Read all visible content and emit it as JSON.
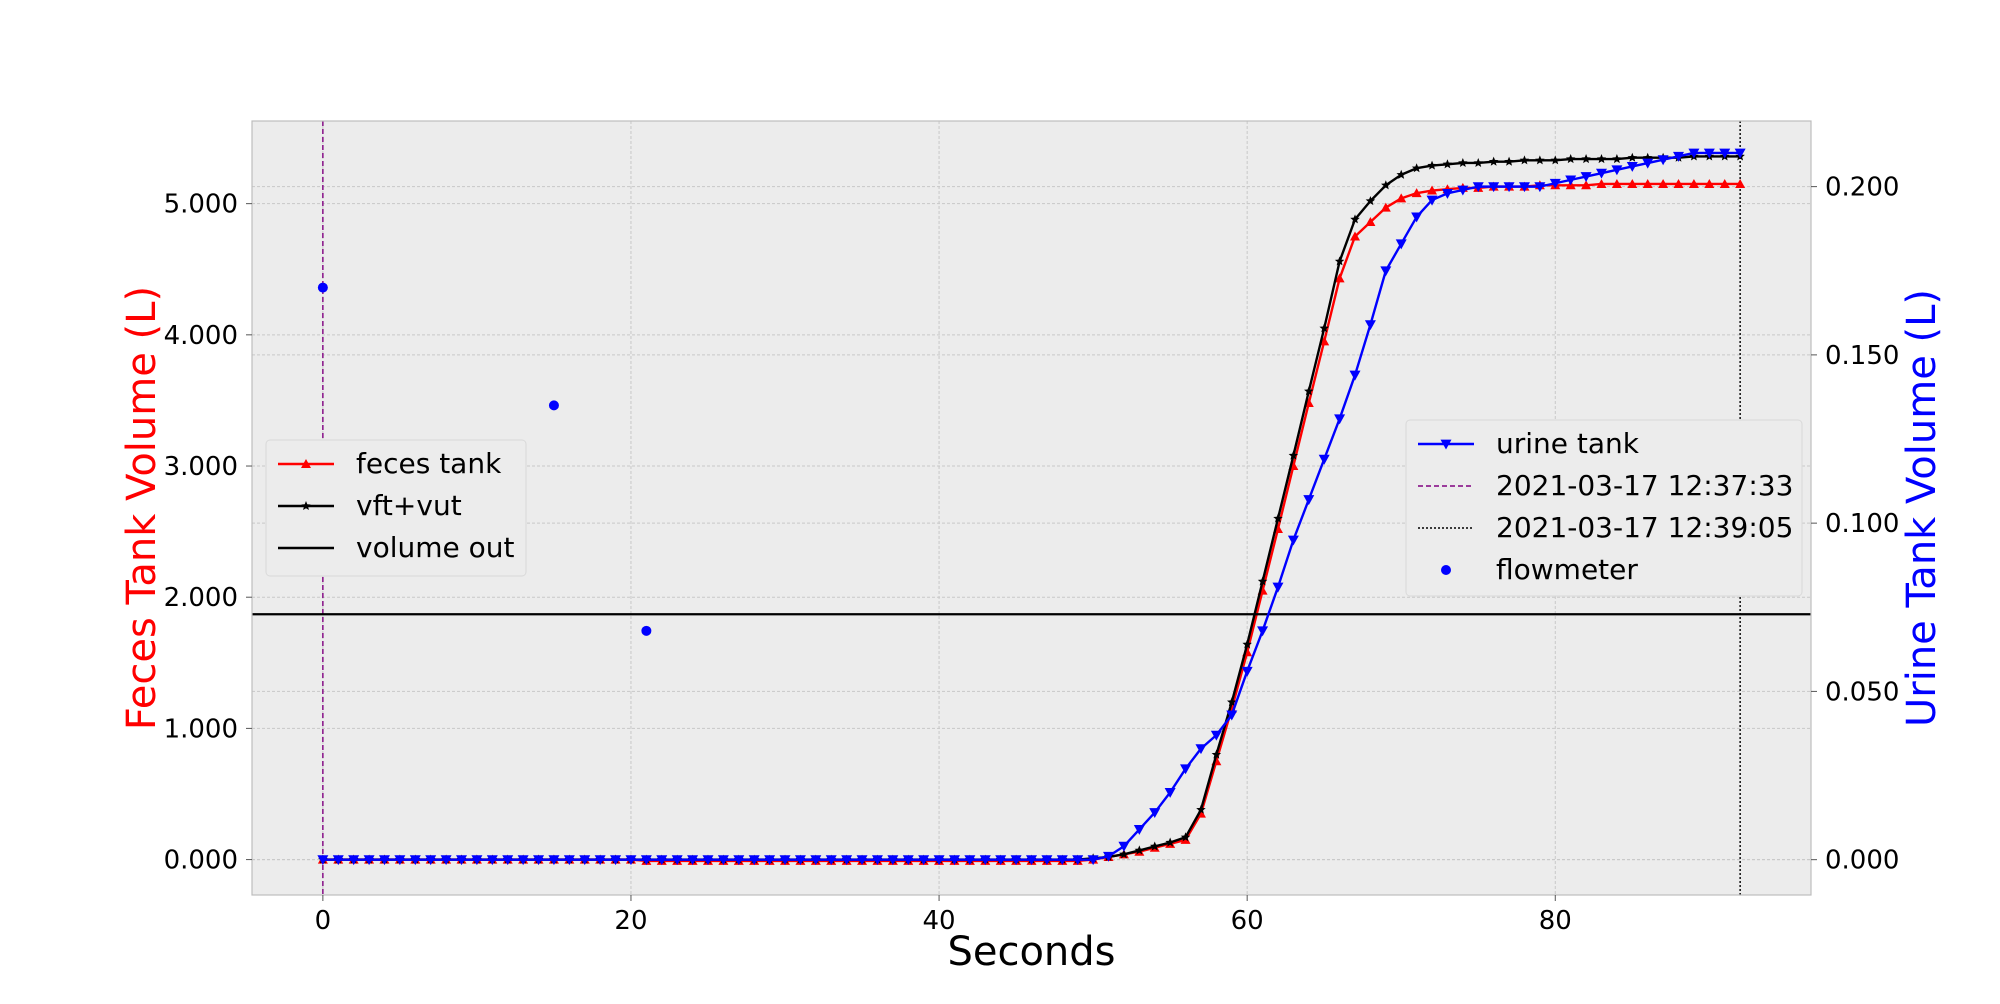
{
  "chart_data": {
    "type": "line",
    "title": "",
    "xlabel": "Seconds",
    "ylabel_left": "Feces Tank Volume (L)",
    "ylabel_right": "Urine Tank Volume (L)",
    "xlim": [
      -4.6,
      96.6
    ],
    "ylim_left": [
      -0.27,
      5.63
    ],
    "ylim_right": [
      -0.0105,
      0.2195
    ],
    "x_ticks": [
      0,
      20,
      40,
      60,
      80
    ],
    "y_ticks_left": [
      0.0,
      1.0,
      2.0,
      3.0,
      4.0,
      5.0
    ],
    "y_tick_labels_left": [
      "0.000",
      "1.000",
      "2.000",
      "3.000",
      "4.000",
      "5.000"
    ],
    "y_ticks_right": [
      0.0,
      0.05,
      0.1,
      0.15,
      0.2
    ],
    "y_tick_labels_right": [
      "0.000",
      "0.050",
      "0.100",
      "0.150",
      "0.200"
    ],
    "grid": true,
    "colors": {
      "feces_axis": "#ff0000",
      "urine_axis": "#0000ff",
      "plot_background": "#ececec",
      "grid": "#c8c8c8"
    },
    "series": [
      {
        "name": "feces tank",
        "axis": "left",
        "color": "#ff0000",
        "marker": "triangle-up",
        "x": [
          0,
          1,
          2,
          3,
          4,
          5,
          6,
          7,
          8,
          9,
          10,
          11,
          12,
          13,
          14,
          15,
          16,
          17,
          18,
          19,
          20,
          21,
          22,
          23,
          24,
          25,
          26,
          27,
          28,
          29,
          30,
          31,
          32,
          33,
          34,
          35,
          36,
          37,
          38,
          39,
          40,
          41,
          42,
          43,
          44,
          45,
          46,
          47,
          48,
          49,
          50,
          51,
          52,
          53,
          54,
          55,
          56,
          57,
          58,
          59,
          60,
          61,
          62,
          63,
          64,
          65,
          66,
          67,
          68,
          69,
          70,
          71,
          72,
          73,
          74,
          75,
          76,
          77,
          78,
          79,
          80,
          81,
          82,
          83,
          84,
          85,
          86,
          87,
          88,
          89,
          90,
          91,
          92
        ],
        "y": [
          0,
          0,
          0,
          0,
          0,
          0,
          0,
          0,
          0,
          0,
          0,
          0,
          0,
          0,
          0,
          0,
          0,
          0,
          0,
          0,
          0,
          -0.01,
          -0.01,
          -0.01,
          -0.01,
          -0.01,
          -0.01,
          -0.01,
          -0.01,
          -0.01,
          -0.01,
          -0.01,
          -0.01,
          -0.01,
          -0.01,
          -0.01,
          -0.01,
          -0.01,
          -0.01,
          -0.01,
          -0.01,
          -0.01,
          -0.01,
          -0.01,
          -0.01,
          -0.01,
          -0.01,
          -0.01,
          -0.01,
          -0.01,
          0,
          0.02,
          0.04,
          0.06,
          0.09,
          0.12,
          0.15,
          0.35,
          0.75,
          1.15,
          1.58,
          2.05,
          2.52,
          3.0,
          3.48,
          3.95,
          4.43,
          4.75,
          4.86,
          4.97,
          5.04,
          5.08,
          5.1,
          5.11,
          5.12,
          5.12,
          5.13,
          5.13,
          5.13,
          5.14,
          5.14,
          5.14,
          5.14,
          5.15,
          5.15,
          5.15,
          5.15,
          5.15,
          5.15,
          5.15,
          5.15,
          5.15,
          5.15
        ]
      },
      {
        "name": "vft+vut",
        "axis": "left",
        "color": "#000000",
        "marker": "star",
        "x": [
          0,
          1,
          2,
          3,
          4,
          5,
          6,
          7,
          8,
          9,
          10,
          11,
          12,
          13,
          14,
          15,
          16,
          17,
          18,
          19,
          20,
          21,
          22,
          23,
          24,
          25,
          26,
          27,
          28,
          29,
          30,
          31,
          32,
          33,
          34,
          35,
          36,
          37,
          38,
          39,
          40,
          41,
          42,
          43,
          44,
          45,
          46,
          47,
          48,
          49,
          50,
          51,
          52,
          53,
          54,
          55,
          56,
          57,
          58,
          59,
          60,
          61,
          62,
          63,
          64,
          65,
          66,
          67,
          68,
          69,
          70,
          71,
          72,
          73,
          74,
          75,
          76,
          77,
          78,
          79,
          80,
          81,
          82,
          83,
          84,
          85,
          86,
          87,
          88,
          89,
          90,
          91,
          92
        ],
        "y": [
          0,
          0,
          0,
          0,
          0,
          0,
          0,
          0,
          0,
          0,
          0,
          0,
          0,
          0,
          0,
          0,
          0,
          0,
          0,
          0,
          0,
          0,
          0,
          0,
          0,
          0,
          0,
          0,
          0,
          0,
          0,
          0,
          0,
          0,
          0,
          0,
          0,
          0,
          0,
          0,
          0,
          0,
          0,
          0,
          0,
          0,
          0,
          0,
          0,
          0,
          0.01,
          0.02,
          0.04,
          0.07,
          0.1,
          0.13,
          0.17,
          0.38,
          0.8,
          1.2,
          1.64,
          2.12,
          2.6,
          3.08,
          3.57,
          4.05,
          4.56,
          4.88,
          5.02,
          5.14,
          5.22,
          5.27,
          5.29,
          5.3,
          5.31,
          5.31,
          5.32,
          5.32,
          5.33,
          5.33,
          5.33,
          5.34,
          5.34,
          5.34,
          5.34,
          5.35,
          5.35,
          5.35,
          5.35,
          5.36,
          5.36,
          5.36,
          5.36
        ]
      },
      {
        "name": "volume out",
        "axis": "left",
        "color": "#000000",
        "marker": "none",
        "x": [
          -4.6,
          96.6
        ],
        "y": [
          1.87,
          1.87
        ]
      },
      {
        "name": "urine tank",
        "axis": "right",
        "color": "#0000ff",
        "marker": "triangle-down",
        "x": [
          0,
          1,
          2,
          3,
          4,
          5,
          6,
          7,
          8,
          9,
          10,
          11,
          12,
          13,
          14,
          15,
          16,
          17,
          18,
          19,
          20,
          21,
          22,
          23,
          24,
          25,
          26,
          27,
          28,
          29,
          30,
          31,
          32,
          33,
          34,
          35,
          36,
          37,
          38,
          39,
          40,
          41,
          42,
          43,
          44,
          45,
          46,
          47,
          48,
          49,
          50,
          51,
          52,
          53,
          54,
          55,
          56,
          57,
          58,
          59,
          60,
          61,
          62,
          63,
          64,
          65,
          66,
          67,
          68,
          69,
          70,
          71,
          72,
          73,
          74,
          75,
          76,
          77,
          78,
          79,
          80,
          81,
          82,
          83,
          84,
          85,
          86,
          87,
          88,
          89,
          90,
          91,
          92
        ],
        "y": [
          0,
          0,
          0,
          0,
          0,
          0,
          0,
          0,
          0,
          0,
          0,
          0,
          0,
          0,
          0,
          0,
          0,
          0,
          0,
          0,
          0,
          0,
          0,
          0,
          0,
          0,
          0,
          0,
          0,
          0,
          0,
          0,
          0,
          0,
          0,
          0,
          0,
          0,
          0,
          0,
          0,
          0,
          0,
          0,
          0,
          0,
          0,
          0,
          0,
          0,
          0,
          0.001,
          0.004,
          0.009,
          0.014,
          0.02,
          0.027,
          0.033,
          0.037,
          0.043,
          0.056,
          0.068,
          0.081,
          0.095,
          0.107,
          0.119,
          0.131,
          0.144,
          0.159,
          0.175,
          0.183,
          0.191,
          0.196,
          0.198,
          0.199,
          0.2,
          0.2,
          0.2,
          0.2,
          0.2,
          0.201,
          0.202,
          0.203,
          0.204,
          0.205,
          0.206,
          0.207,
          0.208,
          0.209,
          0.21,
          0.21,
          0.21,
          0.21
        ]
      },
      {
        "name": "flowmeter",
        "axis": "right",
        "color": "#0000ff",
        "marker": "dot",
        "type": "scatter",
        "x": [
          0,
          15,
          21
        ],
        "y": [
          0.17,
          0.135,
          0.068
        ]
      }
    ],
    "vlines": [
      {
        "name": "2021-03-17 12:37:33",
        "x": 0,
        "color": "#800080",
        "style": "dashed"
      },
      {
        "name": "2021-03-17 12:39:05",
        "x": 92,
        "color": "#000000",
        "style": "dotted"
      }
    ],
    "legends": [
      {
        "placement": "center-left",
        "entries": [
          "feces tank",
          "vft+vut",
          "volume out"
        ]
      },
      {
        "placement": "center-right",
        "entries": [
          "urine tank",
          "2021-03-17 12:37:33",
          "2021-03-17 12:39:05",
          "flowmeter"
        ]
      }
    ]
  }
}
